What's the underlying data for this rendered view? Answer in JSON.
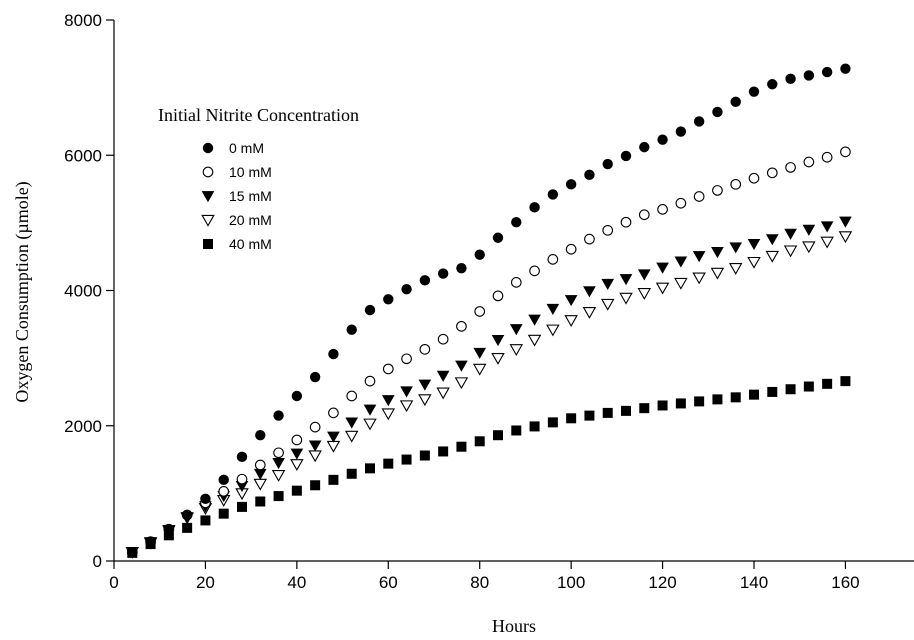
{
  "chart_data": {
    "type": "scatter",
    "title": "",
    "xlabel": "Hours",
    "ylabel": "Oxygen Consumption (µmole)",
    "xlim": [
      0,
      175
    ],
    "ylim": [
      0,
      8000
    ],
    "x_ticks": [
      0,
      20,
      40,
      60,
      80,
      100,
      120,
      140,
      160
    ],
    "y_ticks": [
      0,
      2000,
      4000,
      6000,
      8000
    ],
    "grid": false,
    "legend": {
      "title": "Initial Nitrite Concentration",
      "placement": "top-left"
    },
    "x": [
      4,
      8,
      12,
      16,
      20,
      24,
      28,
      32,
      36,
      40,
      44,
      48,
      52,
      56,
      60,
      64,
      68,
      72,
      76,
      80,
      84,
      88,
      92,
      96,
      100,
      104,
      108,
      112,
      116,
      120,
      124,
      128,
      132,
      136,
      140,
      144,
      148,
      152,
      156,
      160
    ],
    "series": [
      {
        "name": "0 mM",
        "marker": "filled-circle",
        "values": [
          130,
          290,
          470,
          680,
          920,
          1200,
          1540,
          1860,
          2150,
          2440,
          2720,
          3060,
          3420,
          3710,
          3870,
          4020,
          4150,
          4250,
          4330,
          4530,
          4780,
          5010,
          5230,
          5420,
          5570,
          5710,
          5870,
          5990,
          6120,
          6230,
          6350,
          6500,
          6640,
          6790,
          6940,
          7050,
          7130,
          7180,
          7230,
          7280
        ]
      },
      {
        "name": "10 mM",
        "marker": "open-circle",
        "values": [
          130,
          280,
          470,
          680,
          860,
          1030,
          1210,
          1420,
          1600,
          1790,
          1980,
          2190,
          2440,
          2660,
          2840,
          2990,
          3130,
          3280,
          3470,
          3690,
          3920,
          4120,
          4290,
          4460,
          4610,
          4760,
          4890,
          5010,
          5120,
          5200,
          5290,
          5390,
          5480,
          5570,
          5660,
          5740,
          5820,
          5900,
          5970,
          6050
        ]
      },
      {
        "name": "15 mM",
        "marker": "filled-triangle-down",
        "values": [
          130,
          280,
          460,
          650,
          810,
          960,
          1110,
          1290,
          1450,
          1590,
          1710,
          1840,
          2050,
          2240,
          2380,
          2510,
          2610,
          2740,
          2890,
          3080,
          3270,
          3430,
          3570,
          3730,
          3860,
          3990,
          4100,
          4170,
          4240,
          4340,
          4430,
          4510,
          4570,
          4640,
          4690,
          4760,
          4840,
          4900,
          4950,
          5020
        ]
      },
      {
        "name": "20 mM",
        "marker": "open-triangle-down",
        "values": [
          130,
          270,
          450,
          640,
          780,
          900,
          1000,
          1140,
          1270,
          1430,
          1560,
          1700,
          1850,
          2030,
          2180,
          2300,
          2390,
          2490,
          2640,
          2840,
          3000,
          3130,
          3270,
          3420,
          3560,
          3680,
          3800,
          3890,
          3960,
          4040,
          4110,
          4190,
          4260,
          4330,
          4420,
          4510,
          4590,
          4650,
          4720,
          4800
        ]
      },
      {
        "name": "40 mM",
        "marker": "filled-square",
        "values": [
          120,
          250,
          380,
          490,
          600,
          700,
          800,
          880,
          960,
          1040,
          1120,
          1200,
          1290,
          1370,
          1440,
          1500,
          1560,
          1620,
          1690,
          1770,
          1860,
          1930,
          1990,
          2050,
          2110,
          2150,
          2190,
          2220,
          2260,
          2300,
          2330,
          2360,
          2390,
          2420,
          2460,
          2500,
          2540,
          2580,
          2620,
          2660
        ]
      }
    ]
  }
}
